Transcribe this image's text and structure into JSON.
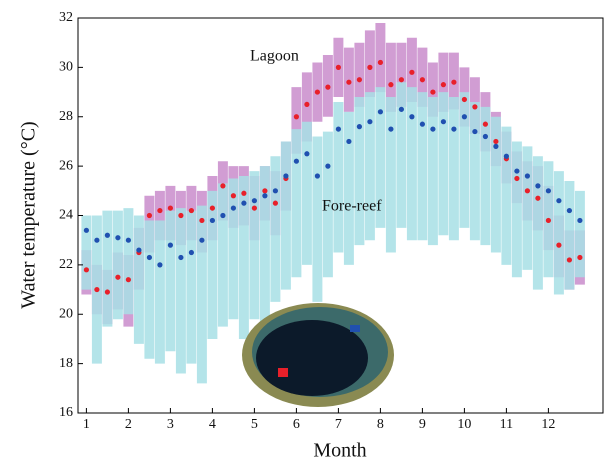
{
  "chart_data": {
    "type": "scatter",
    "x_label": "Month",
    "y_label": "Water temperature (°C)",
    "xlim": [
      0.8,
      13.3
    ],
    "ylim": [
      16,
      32
    ],
    "xticks": [
      1,
      2,
      3,
      4,
      5,
      6,
      7,
      8,
      9,
      10,
      11,
      12
    ],
    "yticks": [
      16,
      18,
      20,
      22,
      24,
      26,
      28,
      30,
      32
    ],
    "x": [
      1,
      1.25,
      1.5,
      1.75,
      2,
      2.25,
      2.5,
      2.75,
      3,
      3.25,
      3.5,
      3.75,
      4,
      4.25,
      4.5,
      4.75,
      5,
      5.25,
      5.5,
      5.75,
      6,
      6.25,
      6.5,
      6.75,
      7,
      7.25,
      7.5,
      7.75,
      8,
      8.25,
      8.5,
      8.75,
      9,
      9.25,
      9.5,
      9.75,
      10,
      10.25,
      10.5,
      10.75,
      11,
      11.25,
      11.5,
      11.75,
      12,
      12.25,
      12.5,
      12.75
    ],
    "series": [
      {
        "name": "Lagoon",
        "color": "#e8202a",
        "range_color": "#c98ccc",
        "values": [
          21.8,
          21.0,
          20.9,
          21.5,
          21.4,
          22.5,
          24.0,
          24.2,
          24.3,
          24.0,
          24.2,
          23.8,
          24.3,
          25.2,
          24.8,
          24.9,
          24.3,
          25.0,
          24.5,
          25.5,
          28.0,
          28.5,
          29.0,
          29.2,
          30.0,
          29.4,
          29.5,
          30.0,
          30.2,
          29.3,
          29.5,
          29.8,
          29.5,
          29.0,
          29.3,
          29.4,
          28.7,
          28.4,
          27.7,
          27.0,
          26.3,
          25.5,
          25.0,
          24.7,
          23.8,
          22.8,
          22.2,
          22.3
        ],
        "low": [
          20.8,
          20.0,
          19.6,
          20.2,
          19.5,
          21.0,
          22.5,
          23.0,
          23.0,
          22.8,
          23.0,
          22.5,
          23.0,
          23.8,
          23.5,
          23.6,
          23.0,
          23.8,
          23.2,
          24.2,
          26.5,
          27.0,
          27.8,
          28.0,
          28.8,
          28.2,
          28.4,
          28.8,
          29.0,
          28.2,
          28.4,
          28.6,
          28.4,
          28.0,
          28.2,
          28.3,
          27.6,
          27.3,
          26.6,
          26.0,
          25.3,
          24.5,
          23.8,
          23.4,
          22.6,
          21.5,
          21.0,
          21.2
        ],
        "high": [
          22.6,
          22.0,
          21.8,
          22.5,
          22.4,
          23.5,
          24.8,
          25.0,
          25.2,
          25.0,
          25.2,
          25.0,
          25.6,
          26.2,
          26.0,
          26.0,
          25.6,
          26.0,
          25.8,
          27.0,
          29.2,
          29.8,
          30.2,
          30.5,
          31.2,
          30.8,
          31.0,
          31.5,
          31.8,
          31.0,
          31.0,
          31.2,
          30.8,
          30.2,
          30.6,
          30.6,
          30.0,
          29.6,
          29.0,
          28.2,
          27.4,
          26.6,
          26.2,
          26.0,
          25.2,
          24.0,
          23.4,
          23.4
        ]
      },
      {
        "name": "Fore-reef",
        "color": "#2050b0",
        "range_color": "#a8e0e6",
        "values": [
          23.4,
          23.0,
          23.2,
          23.1,
          23.0,
          22.6,
          22.3,
          22.0,
          22.8,
          22.3,
          22.5,
          23.0,
          23.8,
          24.0,
          24.3,
          24.5,
          24.6,
          24.8,
          25.0,
          25.6,
          26.2,
          26.5,
          25.6,
          26.0,
          27.5,
          27.0,
          27.6,
          27.8,
          28.2,
          27.5,
          28.3,
          28.0,
          27.7,
          27.5,
          27.8,
          27.5,
          28.0,
          27.4,
          27.2,
          26.8,
          26.4,
          25.8,
          25.6,
          25.2,
          25.0,
          24.6,
          24.2,
          23.8
        ],
        "low": [
          21.0,
          18.0,
          19.5,
          19.8,
          20.0,
          18.8,
          18.2,
          18.0,
          18.5,
          17.6,
          18.0,
          17.2,
          19.0,
          19.5,
          19.8,
          19.0,
          19.8,
          18.5,
          20.5,
          21.0,
          21.5,
          22.0,
          20.5,
          21.5,
          22.5,
          22.0,
          22.8,
          23.0,
          23.5,
          22.5,
          23.5,
          23.0,
          23.0,
          22.8,
          23.2,
          23.0,
          23.5,
          23.0,
          22.8,
          22.5,
          22.0,
          21.5,
          21.8,
          21.0,
          21.5,
          20.8,
          21.0,
          21.5
        ],
        "high": [
          24.0,
          24.0,
          24.2,
          24.2,
          24.3,
          24.0,
          23.8,
          23.8,
          24.2,
          24.3,
          24.2,
          24.4,
          25.0,
          25.3,
          25.5,
          25.6,
          25.8,
          26.0,
          26.4,
          27.0,
          27.5,
          27.8,
          27.2,
          27.4,
          28.6,
          28.2,
          28.8,
          29.0,
          29.2,
          28.8,
          29.4,
          29.2,
          29.0,
          28.8,
          29.0,
          28.8,
          29.0,
          28.6,
          28.4,
          28.0,
          27.6,
          27.0,
          26.8,
          26.4,
          26.2,
          25.8,
          25.4,
          25.0
        ]
      }
    ],
    "annotations": [
      {
        "text": "Lagoon"
      },
      {
        "text": "Fore-reef"
      }
    ]
  }
}
